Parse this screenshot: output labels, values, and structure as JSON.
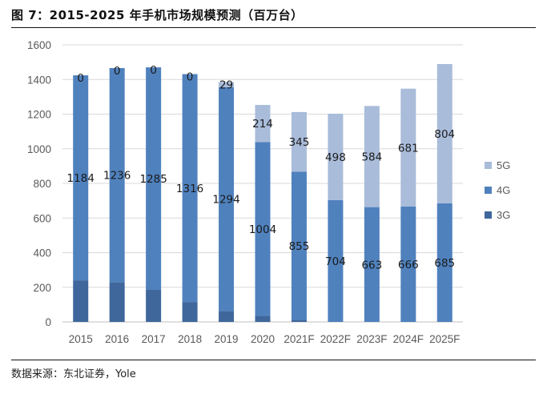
{
  "figure": {
    "title": "图 7：2015-2025 年手机市场规模预测（百万台）",
    "source": "数据来源：东北证券，Yole"
  },
  "chart_data": {
    "type": "bar",
    "stacked": true,
    "categories": [
      "2015",
      "2016",
      "2017",
      "2018",
      "2019",
      "2020",
      "2021F",
      "2022F",
      "2023F",
      "2024F",
      "2025F"
    ],
    "ylim": [
      0,
      1600
    ],
    "yticks": [
      0,
      200,
      400,
      600,
      800,
      1000,
      1200,
      1400,
      1600
    ],
    "grid": true,
    "legend_position": "right",
    "series": [
      {
        "name": "3G",
        "color": "#3f679c",
        "values": [
          240,
          230,
          185,
          115,
          62,
          35,
          12,
          0,
          0,
          0,
          0
        ],
        "labels": [
          "",
          "",
          "",
          "",
          "",
          "",
          "",
          "",
          "",
          "",
          ""
        ]
      },
      {
        "name": "4G",
        "color": "#4f81bd",
        "values": [
          1184,
          1236,
          1285,
          1316,
          1294,
          1004,
          855,
          704,
          663,
          666,
          685
        ],
        "labels": [
          "1184",
          "1236",
          "1285",
          "1316",
          "1294",
          "1004",
          "855",
          "704",
          "663",
          "666",
          "685"
        ]
      },
      {
        "name": "5G",
        "color": "#a9bcda",
        "values": [
          0,
          0,
          0,
          0,
          29,
          214,
          345,
          498,
          584,
          681,
          804
        ],
        "labels": [
          "0",
          "0",
          "0",
          "0",
          "29",
          "214",
          "345",
          "498",
          "584",
          "681",
          "804"
        ]
      }
    ],
    "legend_order": [
      "5G",
      "4G",
      "3G"
    ]
  }
}
